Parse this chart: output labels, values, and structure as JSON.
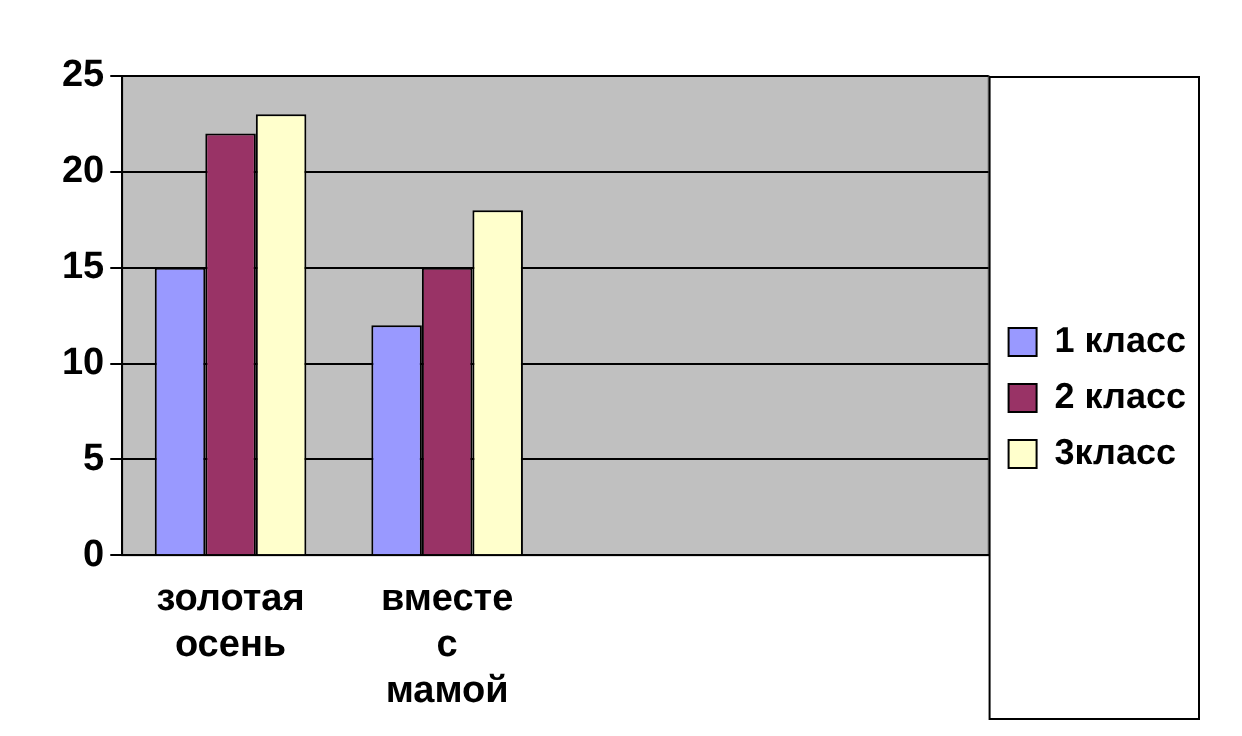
{
  "chart_data": {
    "type": "bar",
    "categories": [
      "золотая осень",
      "вместе с мамой",
      null,
      null
    ],
    "series": [
      {
        "name": "1 класс",
        "color": "#9999ff",
        "values": [
          15,
          12,
          null,
          null
        ]
      },
      {
        "name": "2 класс",
        "color": "#993366",
        "values": [
          22,
          15,
          null,
          null
        ]
      },
      {
        "name": "3класс",
        "color": "#ffffcc",
        "values": [
          23,
          18,
          null,
          null
        ]
      }
    ],
    "ylim": [
      0,
      25
    ],
    "yticks": [
      0,
      5,
      10,
      15,
      20,
      25
    ],
    "grid": "y",
    "legend": "right"
  }
}
